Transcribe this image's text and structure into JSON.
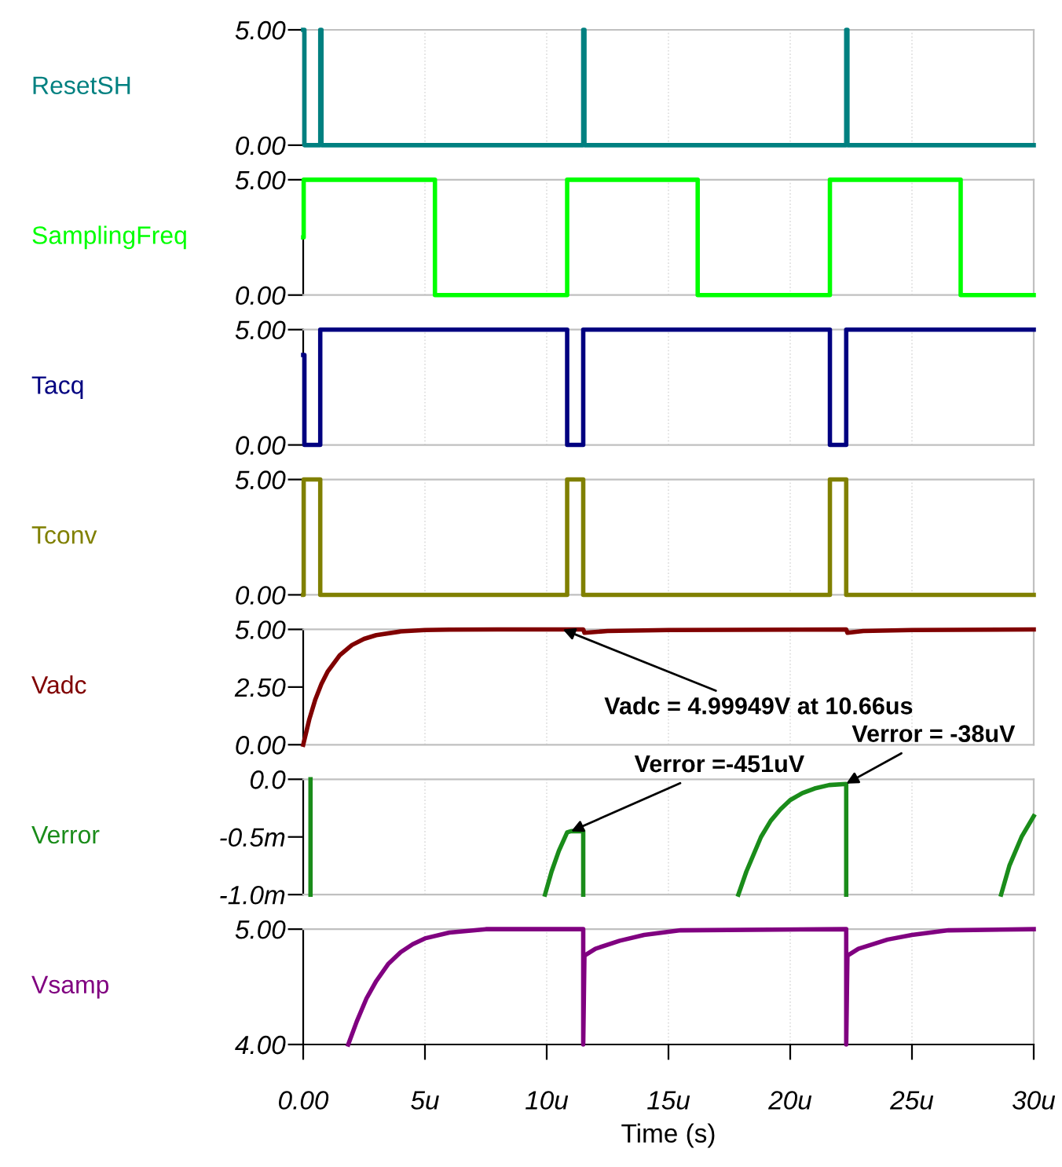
{
  "chart_data": [
    {
      "type": "step",
      "ylabel": "ResetSH",
      "x": [
        0,
        0.05,
        0.7,
        0.75,
        11.5,
        11.55,
        22.3,
        22.35,
        30
      ],
      "series": [
        {
          "color": "#008080",
          "values": [
            5,
            0,
            5,
            0,
            5,
            0,
            5,
            0,
            0
          ]
        }
      ],
      "xlim": [
        0,
        30
      ],
      "xticks": [
        {
          "value": 0,
          "label": null
        },
        {
          "value": 5,
          "label": null
        },
        {
          "value": 10,
          "label": null
        },
        {
          "value": 15,
          "label": null
        },
        {
          "value": 20,
          "label": null
        },
        {
          "value": 25,
          "label": null
        },
        {
          "value": 30,
          "label": null
        }
      ],
      "ylim": [
        0,
        5
      ],
      "yticks": [
        {
          "value": 0,
          "label": "0.00"
        },
        {
          "value": 5,
          "label": "5.00"
        }
      ],
      "grid": "x",
      "tick_labels": "y"
    },
    {
      "type": "step",
      "ylabel": "SamplingFreq",
      "x": [
        0,
        0.02,
        5.41,
        10.84,
        16.2,
        21.63,
        27.0,
        30
      ],
      "series": [
        {
          "color": "#00ff00",
          "values": [
            2.5,
            5,
            0,
            5,
            0,
            5,
            0,
            0
          ]
        }
      ],
      "xlim": [
        0,
        30
      ],
      "xticks": [
        {
          "value": 0,
          "label": null
        },
        {
          "value": 5,
          "label": null
        },
        {
          "value": 10,
          "label": null
        },
        {
          "value": 15,
          "label": null
        },
        {
          "value": 20,
          "label": null
        },
        {
          "value": 25,
          "label": null
        },
        {
          "value": 30,
          "label": null
        }
      ],
      "ylim": [
        0,
        5
      ],
      "yticks": [
        {
          "value": 0,
          "label": "0.00"
        },
        {
          "value": 5,
          "label": "5.00"
        }
      ],
      "grid": "x",
      "tick_labels": "y"
    },
    {
      "type": "step",
      "ylabel": "Tacq",
      "x": [
        0,
        0.05,
        0.7,
        10.84,
        11.5,
        21.63,
        22.3,
        30
      ],
      "series": [
        {
          "color": "#000080",
          "values": [
            3.9,
            0,
            5,
            0,
            5,
            0,
            5,
            5
          ]
        }
      ],
      "xlim": [
        0,
        30
      ],
      "xticks": [
        {
          "value": 0,
          "label": null
        },
        {
          "value": 5,
          "label": null
        },
        {
          "value": 10,
          "label": null
        },
        {
          "value": 15,
          "label": null
        },
        {
          "value": 20,
          "label": null
        },
        {
          "value": 25,
          "label": null
        },
        {
          "value": 30,
          "label": null
        }
      ],
      "ylim": [
        0,
        5
      ],
      "yticks": [
        {
          "value": 0,
          "label": "0.00"
        },
        {
          "value": 5,
          "label": "5.00"
        }
      ],
      "grid": "x",
      "tick_labels": "y"
    },
    {
      "type": "step",
      "ylabel": "Tconv",
      "x": [
        0,
        0.02,
        0.7,
        10.84,
        11.5,
        21.63,
        22.3,
        30
      ],
      "series": [
        {
          "color": "#808000",
          "values": [
            0,
            5,
            0,
            5,
            0,
            5,
            0,
            0
          ]
        }
      ],
      "xlim": [
        0,
        30
      ],
      "xticks": [
        {
          "value": 0,
          "label": null
        },
        {
          "value": 5,
          "label": null
        },
        {
          "value": 10,
          "label": null
        },
        {
          "value": 15,
          "label": null
        },
        {
          "value": 20,
          "label": null
        },
        {
          "value": 25,
          "label": null
        },
        {
          "value": 30,
          "label": null
        }
      ],
      "ylim": [
        0,
        5
      ],
      "yticks": [
        {
          "value": 0,
          "label": "0.00"
        },
        {
          "value": 5,
          "label": "5.00"
        }
      ],
      "grid": "x",
      "tick_labels": "y"
    },
    {
      "type": "line",
      "ylabel": "Vadc",
      "x": [
        0,
        0.25,
        0.5,
        0.75,
        1,
        1.5,
        2,
        2.5,
        3,
        4,
        5,
        6,
        8,
        10.66,
        11.5,
        11.55,
        12.5,
        15,
        22.3,
        22.35,
        23,
        25,
        30
      ],
      "series": [
        {
          "color": "#800000",
          "values": [
            0,
            1.1,
            1.97,
            2.64,
            3.16,
            3.88,
            4.32,
            4.59,
            4.75,
            4.91,
            4.97,
            4.99,
            5.0,
            5.0,
            5.0,
            4.85,
            4.93,
            4.97,
            5.0,
            4.85,
            4.93,
            4.97,
            5.0
          ]
        }
      ],
      "xlim": [
        0,
        30
      ],
      "xticks": [
        {
          "value": 0,
          "label": null
        },
        {
          "value": 5,
          "label": null
        },
        {
          "value": 10,
          "label": null
        },
        {
          "value": 15,
          "label": null
        },
        {
          "value": 20,
          "label": null
        },
        {
          "value": 25,
          "label": null
        },
        {
          "value": 30,
          "label": null
        }
      ],
      "ylim": [
        0,
        5
      ],
      "yticks": [
        {
          "value": 0,
          "label": "0.00"
        },
        {
          "value": 2.5,
          "label": "2.50"
        },
        {
          "value": 5,
          "label": "5.00"
        }
      ],
      "grid": "x",
      "tick_labels": "y",
      "annotations": [
        {
          "text": "Vadc = 4.99949V at 10.66us",
          "x": 10.66,
          "y": 4.99949
        }
      ]
    },
    {
      "type": "line",
      "ylabel": "Verror",
      "x": [
        0.3,
        0.3,
        0.35,
        9.93,
        10.2,
        10.5,
        10.84,
        11.0,
        11.5,
        11.5,
        11.55,
        17.87,
        18.2,
        18.5,
        18.8,
        19.2,
        19.6,
        20,
        20.5,
        21,
        21.6,
        22.3,
        22.3,
        22.35,
        28.66,
        29,
        29.5,
        30
      ],
      "series": [
        {
          "color": "#1a8c1a",
          "values": [
            0,
            -1.0,
            null,
            -1.0,
            -0.8,
            -0.62,
            -0.46,
            -0.45,
            -0.45,
            -1.0,
            null,
            -1.0,
            -0.8,
            -0.65,
            -0.5,
            -0.36,
            -0.26,
            -0.18,
            -0.12,
            -0.08,
            -0.05,
            -0.04,
            -1.0,
            null,
            -1.0,
            -0.75,
            -0.5,
            -0.32
          ]
        }
      ],
      "xlim": [
        0,
        30
      ],
      "xticks": [
        {
          "value": 0,
          "label": null
        },
        {
          "value": 5,
          "label": null
        },
        {
          "value": 10,
          "label": null
        },
        {
          "value": 15,
          "label": null
        },
        {
          "value": 20,
          "label": null
        },
        {
          "value": 25,
          "label": null
        },
        {
          "value": 30,
          "label": null
        }
      ],
      "ylim": [
        -1.0,
        0
      ],
      "yticks": [
        {
          "value": -1.0,
          "label": "-1.0m"
        },
        {
          "value": -0.5,
          "label": "-0.5m"
        },
        {
          "value": 0,
          "label": "0.0"
        }
      ],
      "grid": "x",
      "tick_labels": "y",
      "annotations": [
        {
          "text": "Verror =-451uV",
          "x": 11.0,
          "y": -0.451
        },
        {
          "text": "Verror = -38uV",
          "x": 22.3,
          "y": -0.038
        }
      ]
    },
    {
      "type": "line",
      "ylabel": "Vsamp",
      "xlabel": "Time (s)",
      "x": [
        1.85,
        2.2,
        2.6,
        3,
        3.5,
        4,
        4.5,
        5,
        6,
        7.5,
        11.5,
        11.5,
        11.55,
        12,
        13,
        14,
        15.5,
        22.3,
        22.3,
        22.35,
        22.8,
        24,
        25,
        26.5,
        30
      ],
      "series": [
        {
          "color": "#800080",
          "values": [
            4.0,
            4.2,
            4.4,
            4.55,
            4.7,
            4.8,
            4.87,
            4.92,
            4.97,
            5.0,
            5.0,
            4.0,
            4.77,
            4.83,
            4.9,
            4.95,
            4.99,
            5.0,
            4.0,
            4.77,
            4.83,
            4.91,
            4.95,
            4.99,
            5.0
          ]
        }
      ],
      "xlim": [
        0,
        30
      ],
      "xticks": [
        {
          "value": 0,
          "label": "0.00"
        },
        {
          "value": 5,
          "label": "5u"
        },
        {
          "value": 10,
          "label": "10u"
        },
        {
          "value": 15,
          "label": "15u"
        },
        {
          "value": 20,
          "label": "20u"
        },
        {
          "value": 25,
          "label": "25u"
        },
        {
          "value": 30,
          "label": "30u"
        }
      ],
      "ylim": [
        4,
        5
      ],
      "yticks": [
        {
          "value": 4,
          "label": "4.00"
        },
        {
          "value": 5,
          "label": "5.00"
        }
      ],
      "grid": "x"
    }
  ]
}
